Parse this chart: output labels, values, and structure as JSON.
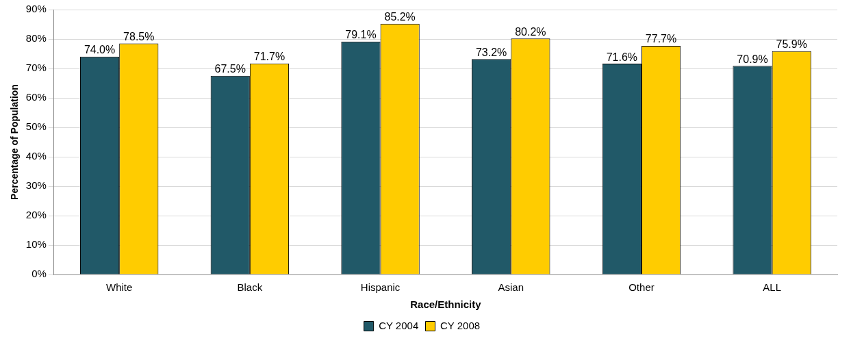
{
  "chart_data": {
    "type": "bar",
    "xlabel": "Race/Ethnicity",
    "ylabel": "Percentage of Population",
    "categories": [
      "White",
      "Black",
      "Hispanic",
      "Asian",
      "Other",
      "ALL"
    ],
    "series": [
      {
        "name": "CY 2004",
        "color": "#215968",
        "values": [
          74.0,
          67.5,
          79.1,
          73.2,
          71.6,
          70.9
        ],
        "value_labels": [
          "74.0%",
          "67.5%",
          "79.1%",
          "73.2%",
          "71.6%",
          "70.9%"
        ]
      },
      {
        "name": "CY 2008",
        "color": "#ffcc00",
        "values": [
          78.5,
          71.7,
          85.2,
          80.2,
          77.7,
          75.9
        ],
        "value_labels": [
          "78.5%",
          "71.7%",
          "85.2%",
          "80.2%",
          "77.7%",
          "75.9%"
        ]
      }
    ],
    "ylim": [
      0,
      90
    ],
    "yticks": [
      {
        "value": 0,
        "label": "0%"
      },
      {
        "value": 10,
        "label": "10%"
      },
      {
        "value": 20,
        "label": "20%"
      },
      {
        "value": 30,
        "label": "30%"
      },
      {
        "value": 40,
        "label": "40%"
      },
      {
        "value": 50,
        "label": "50%"
      },
      {
        "value": 60,
        "label": "60%"
      },
      {
        "value": 70,
        "label": "70%"
      },
      {
        "value": 80,
        "label": "80%"
      },
      {
        "value": 90,
        "label": "90%"
      }
    ],
    "grid": "y",
    "legend": "bottom"
  }
}
